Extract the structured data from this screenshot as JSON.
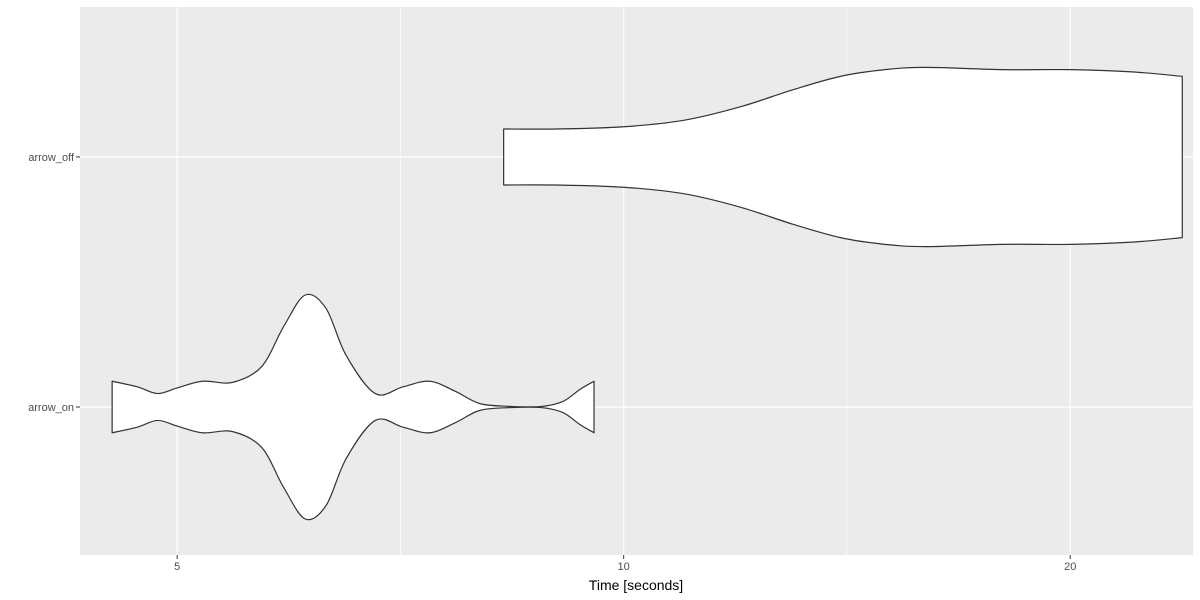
{
  "chart_data": {
    "type": "violin",
    "orientation": "horizontal",
    "title": "",
    "xlabel": "Time [seconds]",
    "ylabel": "",
    "x_scale": "log10",
    "xlim": [
      4.3,
      24.2
    ],
    "x_ticks": [
      5,
      10,
      20
    ],
    "x_tick_labels": [
      "5",
      "10",
      "20"
    ],
    "categories": [
      "arrow_on",
      "arrow_off"
    ],
    "grid": true,
    "legend": "none",
    "colors": {
      "panel_background": "#ebebeb",
      "grid_line": "#ffffff",
      "violin_fill": "#ffffff",
      "violin_outline": "#333333"
    },
    "series": [
      {
        "category": "arrow_on",
        "range": [
          4.52,
          9.55
        ],
        "density_profile": [
          [
            4.52,
            0.23
          ],
          [
            4.7,
            0.18
          ],
          [
            4.85,
            0.12
          ],
          [
            5.0,
            0.17
          ],
          [
            5.2,
            0.23
          ],
          [
            5.45,
            0.22
          ],
          [
            5.7,
            0.36
          ],
          [
            5.9,
            0.72
          ],
          [
            6.1,
            1.0
          ],
          [
            6.3,
            0.88
          ],
          [
            6.5,
            0.46
          ],
          [
            6.8,
            0.12
          ],
          [
            7.1,
            0.18
          ],
          [
            7.4,
            0.23
          ],
          [
            7.7,
            0.14
          ],
          [
            8.0,
            0.03
          ],
          [
            8.4,
            0.005
          ],
          [
            8.8,
            0.005
          ],
          [
            9.1,
            0.05
          ],
          [
            9.35,
            0.16
          ],
          [
            9.55,
            0.23
          ]
        ]
      },
      {
        "category": "arrow_off",
        "range": [
          8.3,
          23.8
        ],
        "density_profile": [
          [
            8.3,
            0.25
          ],
          [
            9.0,
            0.25
          ],
          [
            10.0,
            0.27
          ],
          [
            11.0,
            0.33
          ],
          [
            12.0,
            0.45
          ],
          [
            13.0,
            0.6
          ],
          [
            14.0,
            0.72
          ],
          [
            15.0,
            0.78
          ],
          [
            16.0,
            0.8
          ],
          [
            18.0,
            0.78
          ],
          [
            20.0,
            0.78
          ],
          [
            22.0,
            0.76
          ],
          [
            23.8,
            0.72
          ]
        ]
      }
    ]
  }
}
